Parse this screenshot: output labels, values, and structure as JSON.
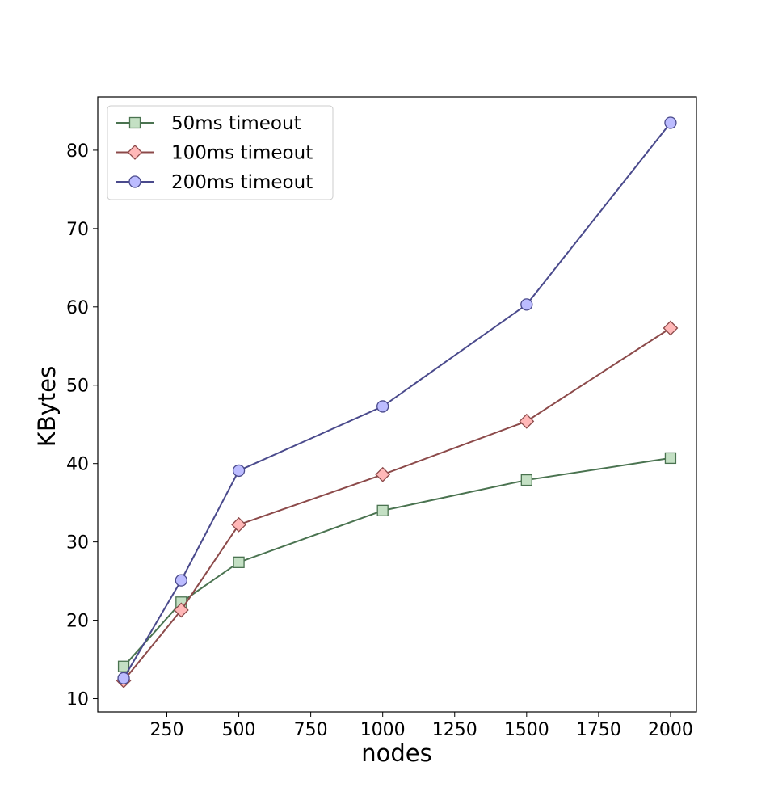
{
  "chart_data": {
    "type": "line",
    "xlabel": "nodes",
    "ylabel": "KBytes",
    "xlim": [
      10,
      2090
    ],
    "ylim": [
      8.3,
      86.8
    ],
    "xticks": [
      250,
      500,
      750,
      1000,
      1250,
      1500,
      1750,
      2000
    ],
    "yticks": [
      10,
      20,
      30,
      40,
      50,
      60,
      70,
      80
    ],
    "x": [
      100,
      300,
      500,
      1000,
      1500,
      2000
    ],
    "grid": false,
    "legend_position": "top-left",
    "series": [
      {
        "name": "50ms timeout",
        "values": [
          14.1,
          22.3,
          27.4,
          34.0,
          37.9,
          40.7
        ],
        "marker": "square",
        "line_color": "#4a7350",
        "marker_fill": "#c4e0c4",
        "marker_edge": "#4a7350"
      },
      {
        "name": "100ms timeout",
        "values": [
          12.3,
          21.3,
          32.2,
          38.6,
          45.4,
          57.3
        ],
        "marker": "diamond",
        "line_color": "#8c4a4a",
        "marker_fill": "#ffb8b8",
        "marker_edge": "#8c4a4a"
      },
      {
        "name": "200ms timeout",
        "values": [
          12.6,
          25.1,
          39.1,
          47.3,
          60.3,
          83.5
        ],
        "marker": "circle",
        "line_color": "#4a4a8c",
        "marker_fill": "#bcbcff",
        "marker_edge": "#4a4a8c"
      }
    ]
  }
}
